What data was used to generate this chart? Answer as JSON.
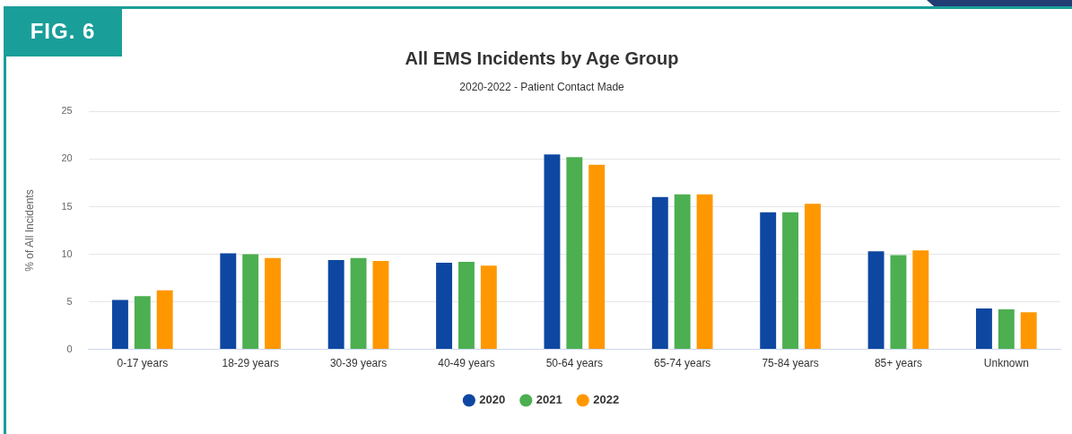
{
  "chart_data": {
    "type": "bar",
    "title": "All EMS Incidents by Age Group",
    "subtitle": "2020-2022 - Patient Contact Made",
    "ylabel": "% of All Incidents",
    "annotations": [
      "FIG. 6"
    ],
    "categories": [
      "0-17 years",
      "18-29 years",
      "30-39 years",
      "40-49 years",
      "50-64 years",
      "65-74 years",
      "75-84 years",
      "85+ years",
      "Unknown"
    ],
    "series": [
      {
        "name": "2020",
        "color": "#0d47a1",
        "values": [
          5.2,
          10.1,
          9.4,
          9.1,
          20.5,
          16.0,
          14.4,
          10.3,
          4.3
        ]
      },
      {
        "name": "2021",
        "color": "#4caf50",
        "values": [
          5.6,
          10.0,
          9.6,
          9.2,
          20.2,
          16.3,
          14.4,
          9.9,
          4.2
        ]
      },
      {
        "name": "2022",
        "color": "#ff9800",
        "values": [
          6.2,
          9.6,
          9.3,
          8.8,
          19.4,
          16.3,
          15.3,
          10.4,
          3.9
        ]
      }
    ],
    "ylim": [
      0,
      25
    ],
    "yticks": [
      0,
      5,
      10,
      15,
      20,
      25
    ],
    "grid": "y",
    "legend": "bottom"
  }
}
